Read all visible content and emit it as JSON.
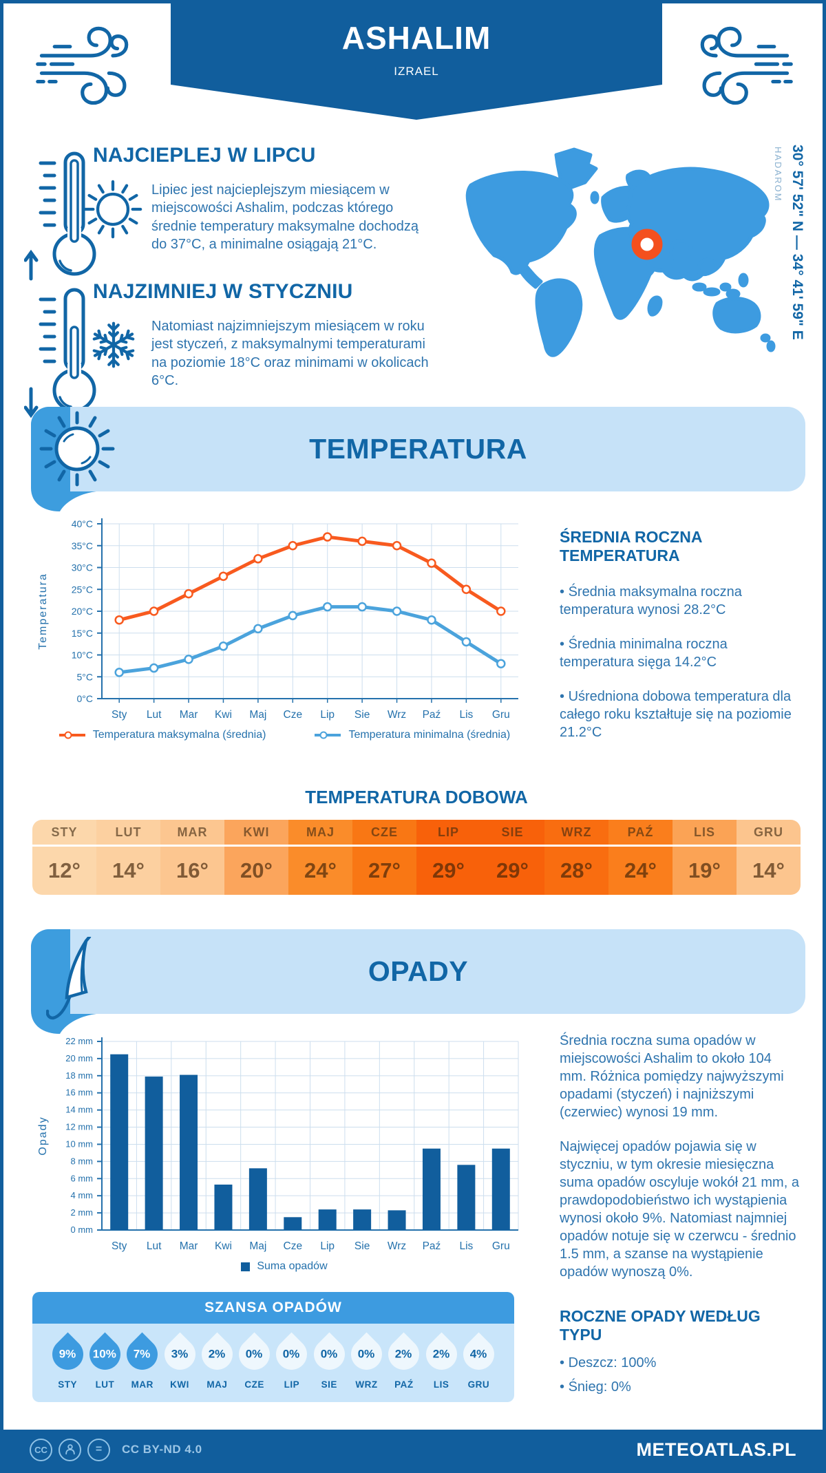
{
  "header": {
    "title": "ASHALIM",
    "subtitle": "IZRAEL"
  },
  "intro": {
    "warmest": {
      "title": "NAJCIEPLEJ W LIPCU",
      "text": "Lipiec jest najcieplejszym miesiącem w miejscowości Ashalim, podczas którego średnie temperatury maksymalne dochodzą do 37°C, a minimalne osiągają 21°C."
    },
    "coldest": {
      "title": "NAJZIMNIEJ W STYCZNIU",
      "text": "Natomiast najzimniejszym miesiącem w roku jest styczeń, z maksymalnymi temperaturami na poziomie 18°C oraz minimami w okolicach 6°C."
    }
  },
  "map": {
    "coordinates": "30° 57' 52\" N — 34° 41' 59\" E",
    "region": "HADAROM",
    "land_color": "#3d9be0",
    "marker_color": "#f4501e"
  },
  "temperature_section": {
    "banner": "TEMPERATURA",
    "annual": {
      "heading": "ŚREDNIA ROCZNA TEMPERATURA",
      "bullets": [
        "Średnia maksymalna roczna temperatura wynosi 28.2°C",
        "Średnia minimalna roczna temperatura sięga 14.2°C",
        "Uśredniona dobowa temperatura dla całego roku kształtuje się na poziomie 21.2°C"
      ]
    },
    "daily": {
      "title": "TEMPERATURA DOBOWA",
      "months": [
        "STY",
        "LUT",
        "MAR",
        "KWI",
        "MAJ",
        "CZE",
        "LIP",
        "SIE",
        "WRZ",
        "PAŹ",
        "LIS",
        "GRU"
      ],
      "values": [
        "12°",
        "14°",
        "16°",
        "20°",
        "24°",
        "27°",
        "29°",
        "29°",
        "28°",
        "24°",
        "19°",
        "14°"
      ],
      "cell_colors": [
        "#fcd7ab",
        "#fcd0a0",
        "#fcc690",
        "#fba55c",
        "#fa8c2a",
        "#f97714",
        "#f8610a",
        "#f8610a",
        "#f96d10",
        "#fa7e1c",
        "#fba355",
        "#fcc58e"
      ]
    }
  },
  "precipitation_section": {
    "banner": "OPADY",
    "text1": "Średnia roczna suma opadów w miejscowości Ashalim to około 104 mm. Różnica pomiędzy najwyższymi opadami (styczeń) i najniższymi (czerwiec) wynosi 19 mm.",
    "text2": "Najwięcej opadów pojawia się w styczniu, w tym okresie miesięczna suma opadów oscyluje wokół 21 mm, a prawdopodobieństwo ich wystąpienia wynosi około 9%. Natomiast najmniej opadów notuje się w czerwcu - średnio 1.5 mm, a szanse na wystąpienie opadów wynoszą 0%.",
    "by_type": {
      "heading": "ROCZNE OPADY WEDŁUG TYPU",
      "bullets": [
        "Deszcz: 100%",
        "Śnieg: 0%"
      ]
    },
    "chance": {
      "title": "SZANSA OPADÓW",
      "months": [
        "STY",
        "LUT",
        "MAR",
        "KWI",
        "MAJ",
        "CZE",
        "LIP",
        "SIE",
        "WRZ",
        "PAŹ",
        "LIS",
        "GRU"
      ],
      "values": [
        "9%",
        "10%",
        "7%",
        "3%",
        "2%",
        "0%",
        "0%",
        "0%",
        "0%",
        "2%",
        "2%",
        "4%"
      ],
      "filled": [
        true,
        true,
        true,
        false,
        false,
        false,
        false,
        false,
        false,
        false,
        false,
        false
      ]
    }
  },
  "chart_data": [
    {
      "type": "line",
      "title": "",
      "categories": [
        "Sty",
        "Lut",
        "Mar",
        "Kwi",
        "Maj",
        "Cze",
        "Lip",
        "Sie",
        "Wrz",
        "Paź",
        "Lis",
        "Gru"
      ],
      "series": [
        {
          "name": "Temperatura maksymalna (średnia)",
          "color": "#f85a1f",
          "values": [
            18,
            20,
            24,
            28,
            32,
            35,
            37,
            36,
            35,
            31,
            25,
            20
          ]
        },
        {
          "name": "Temperatura minimalna (średnia)",
          "color": "#4ba3dc",
          "values": [
            6,
            7,
            9,
            12,
            16,
            19,
            21,
            21,
            20,
            18,
            13,
            8
          ]
        }
      ],
      "xlabel": "",
      "ylabel": "Temperatura",
      "ylim": [
        0,
        40
      ],
      "ytick_step": 5,
      "ytick_suffix": "°C",
      "grid": true,
      "legend_position": "bottom"
    },
    {
      "type": "bar",
      "title": "",
      "categories": [
        "Sty",
        "Lut",
        "Mar",
        "Kwi",
        "Maj",
        "Cze",
        "Lip",
        "Sie",
        "Wrz",
        "Paź",
        "Lis",
        "Gru"
      ],
      "values": [
        20.5,
        17.9,
        18.1,
        5.3,
        7.2,
        1.5,
        2.4,
        2.4,
        2.3,
        9.5,
        7.6,
        9.5
      ],
      "series_name": "Suma opadów",
      "color": "#115e9d",
      "xlabel": "",
      "ylabel": "Opady",
      "ylim": [
        0,
        22
      ],
      "ytick_step": 2,
      "ytick_suffix": " mm",
      "grid": true,
      "legend_position": "bottom"
    }
  ],
  "footer": {
    "license": "CC BY-ND 4.0",
    "site": "METEOATLAS.PL"
  }
}
